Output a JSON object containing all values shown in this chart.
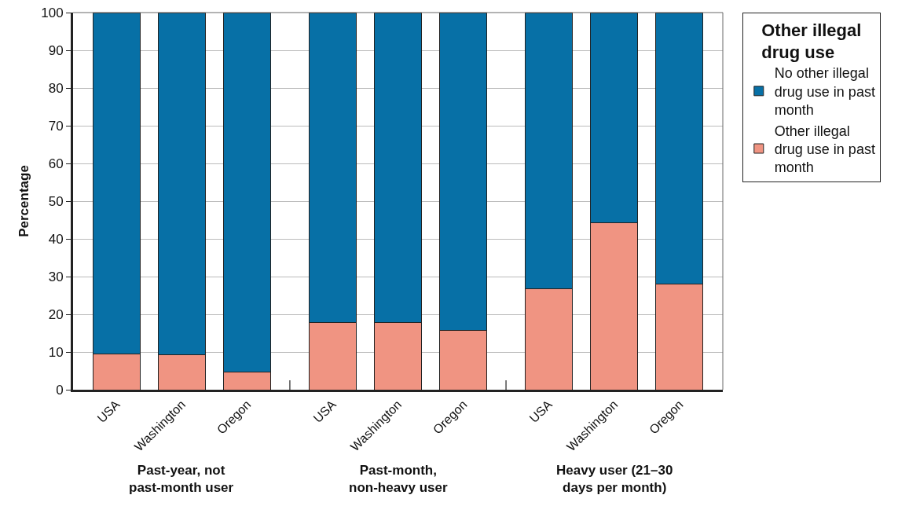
{
  "chart_data": {
    "type": "bar",
    "stacked": true,
    "ylabel": "Percentage",
    "legend_title": "Other illegal drug use",
    "legend": "top right",
    "grid": "y",
    "categories": [
      "USA",
      "Washington",
      "Oregon",
      "USA",
      "Washington",
      "Oregon",
      "USA",
      "Washington",
      "Oregon"
    ],
    "series": [
      {
        "name": "Other illegal drug use in past month",
        "color": "#f09482",
        "values": [
          9.5,
          9.3,
          4.7,
          17.8,
          17.8,
          15.8,
          26.7,
          44.2,
          28.1
        ]
      },
      {
        "name": "No other illegal drug use in past month",
        "color": "#0770a6",
        "values": [
          90.5,
          90.7,
          95.3,
          82.2,
          82.2,
          84.2,
          73.3,
          55.8,
          71.9
        ]
      }
    ],
    "ylim": [
      0,
      100
    ],
    "yticks": [
      0,
      10,
      20,
      30,
      40,
      50,
      60,
      70,
      80,
      90,
      100
    ],
    "annotations": [
      "Past-year, not past-month user",
      "Past-month, non-heavy user",
      "Heavy user (21–30 days per month)"
    ]
  }
}
